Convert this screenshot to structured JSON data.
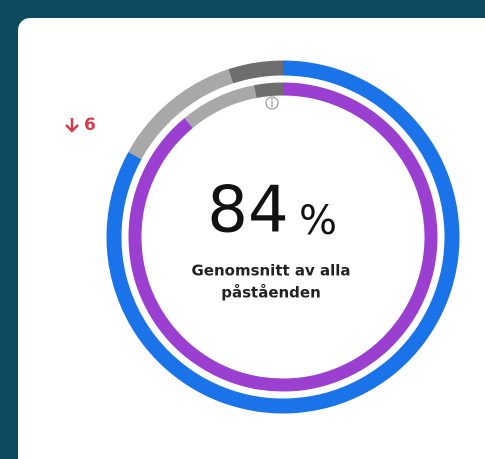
{
  "chart_data": {
    "type": "donut",
    "center_value": 84,
    "center_unit": "%",
    "center_label": [
      "Genomsnitt av alla",
      "påståenden"
    ],
    "change": 6,
    "change_color": "#d83a4a",
    "rings": [
      {
        "colors": [
          "#1a73e8",
          "#a8a8a8",
          "#6e6e6e"
        ],
        "values": [
          83,
          12,
          5
        ]
      },
      {
        "colors": [
          "#9b3fd1",
          "#a8a8a8",
          "#6e6e6e"
        ],
        "values": [
          89,
          8,
          3
        ]
      }
    ]
  }
}
